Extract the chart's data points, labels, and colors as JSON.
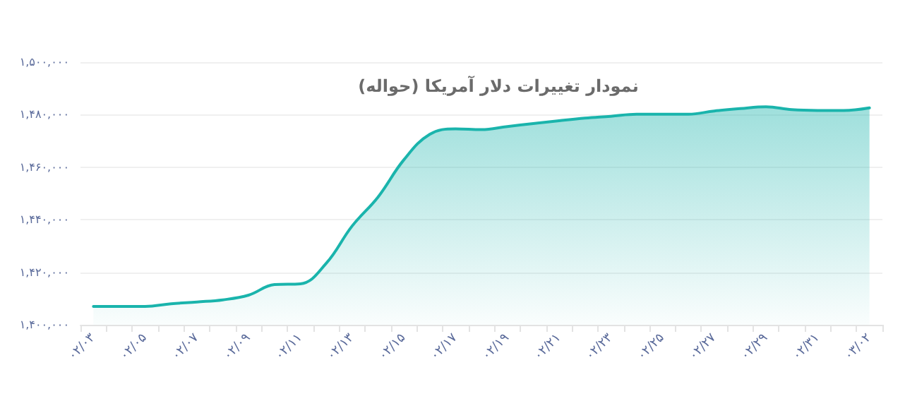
{
  "chart_data": {
    "type": "area",
    "title": "نمودار تغییرات دلار آمریکا (حواله)",
    "categories": [
      "۰۲/۰۳",
      null,
      "۰۲/۰۵",
      null,
      "۰۲/۰۷",
      null,
      "۰۲/۰۹",
      null,
      "۰۲/۱۱",
      null,
      "۰۲/۱۳",
      null,
      "۰۲/۱۵",
      null,
      "۰۲/۱۷",
      null,
      "۰۲/۱۹",
      null,
      "۰۲/۲۱",
      null,
      "۰۲/۲۳",
      null,
      "۰۲/۲۵",
      null,
      "۰۲/۲۷",
      null,
      "۰۲/۲۹",
      null,
      "۰۲/۳۱",
      null,
      "۰۳/۰۲"
    ],
    "series": [
      {
        "color": "#1ab4ac",
        "values": [
          1407000,
          1407000,
          1407000,
          1408000,
          1408700,
          1409500,
          1411300,
          1415300,
          1415600,
          1423400,
          1437600,
          1448600,
          1462800,
          1472500,
          1474600,
          1474300,
          1475500,
          1476600,
          1477700,
          1478700,
          1479400,
          1480200,
          1480200,
          1480200,
          1481400,
          1482300,
          1483000,
          1481900,
          1481600,
          1481600,
          1482600
        ]
      }
    ],
    "ylim": [
      1400000,
      1500000
    ],
    "yticks": [
      {
        "value": 1400000,
        "label": "۱,۴۰۰,۰۰۰"
      },
      {
        "value": 1420000,
        "label": "۱,۴۲۰,۰۰۰"
      },
      {
        "value": 1440000,
        "label": "۱,۴۴۰,۰۰۰"
      },
      {
        "value": 1460000,
        "label": "۱,۴۶۰,۰۰۰"
      },
      {
        "value": 1480000,
        "label": "۱,۴۸۰,۰۰۰"
      },
      {
        "value": 1500000,
        "label": "۱,۵۰۰,۰۰۰"
      }
    ],
    "grid": "y",
    "marker": "none",
    "line_style": "solid"
  }
}
